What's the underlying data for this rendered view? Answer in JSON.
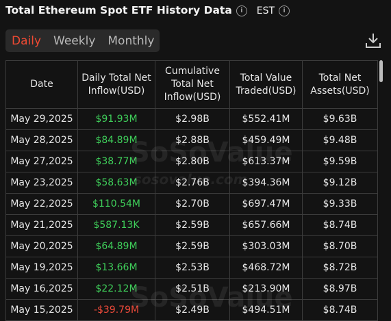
{
  "header": {
    "title": "Total Ethereum Spot ETF History Data",
    "timezone": "EST"
  },
  "tabs": [
    "Daily",
    "Weekly",
    "Monthly"
  ],
  "watermark": {
    "brand": "SoSoValue",
    "url": "sosovalue.com"
  },
  "table": {
    "columns": [
      "Date",
      "Daily Total Net Inflow(USD)",
      "Cumulative Total Net Inflow(USD)",
      "Total Value Traded(USD)",
      "Total Net Assets(USD)"
    ],
    "rows": [
      [
        "May 29,2025",
        "$91.93M",
        "$2.98B",
        "$552.41M",
        "$9.63B"
      ],
      [
        "May 28,2025",
        "$84.89M",
        "$2.88B",
        "$459.49M",
        "$9.48B"
      ],
      [
        "May 27,2025",
        "$38.77M",
        "$2.80B",
        "$613.37M",
        "$9.59B"
      ],
      [
        "May 23,2025",
        "$58.63M",
        "$2.76B",
        "$394.36M",
        "$9.12B"
      ],
      [
        "May 22,2025",
        "$110.54M",
        "$2.70B",
        "$697.47M",
        "$9.33B"
      ],
      [
        "May 21,2025",
        "$587.13K",
        "$2.59B",
        "$657.66M",
        "$8.74B"
      ],
      [
        "May 20,2025",
        "$64.89M",
        "$2.59B",
        "$303.03M",
        "$8.70B"
      ],
      [
        "May 19,2025",
        "$13.66M",
        "$2.53B",
        "$468.72M",
        "$8.72B"
      ],
      [
        "May 16,2025",
        "$22.12M",
        "$2.51B",
        "$213.90M",
        "$8.97B"
      ],
      [
        "May 15,2025",
        "-$39.79M",
        "$2.49B",
        "$494.51M",
        "$8.74B"
      ]
    ]
  }
}
